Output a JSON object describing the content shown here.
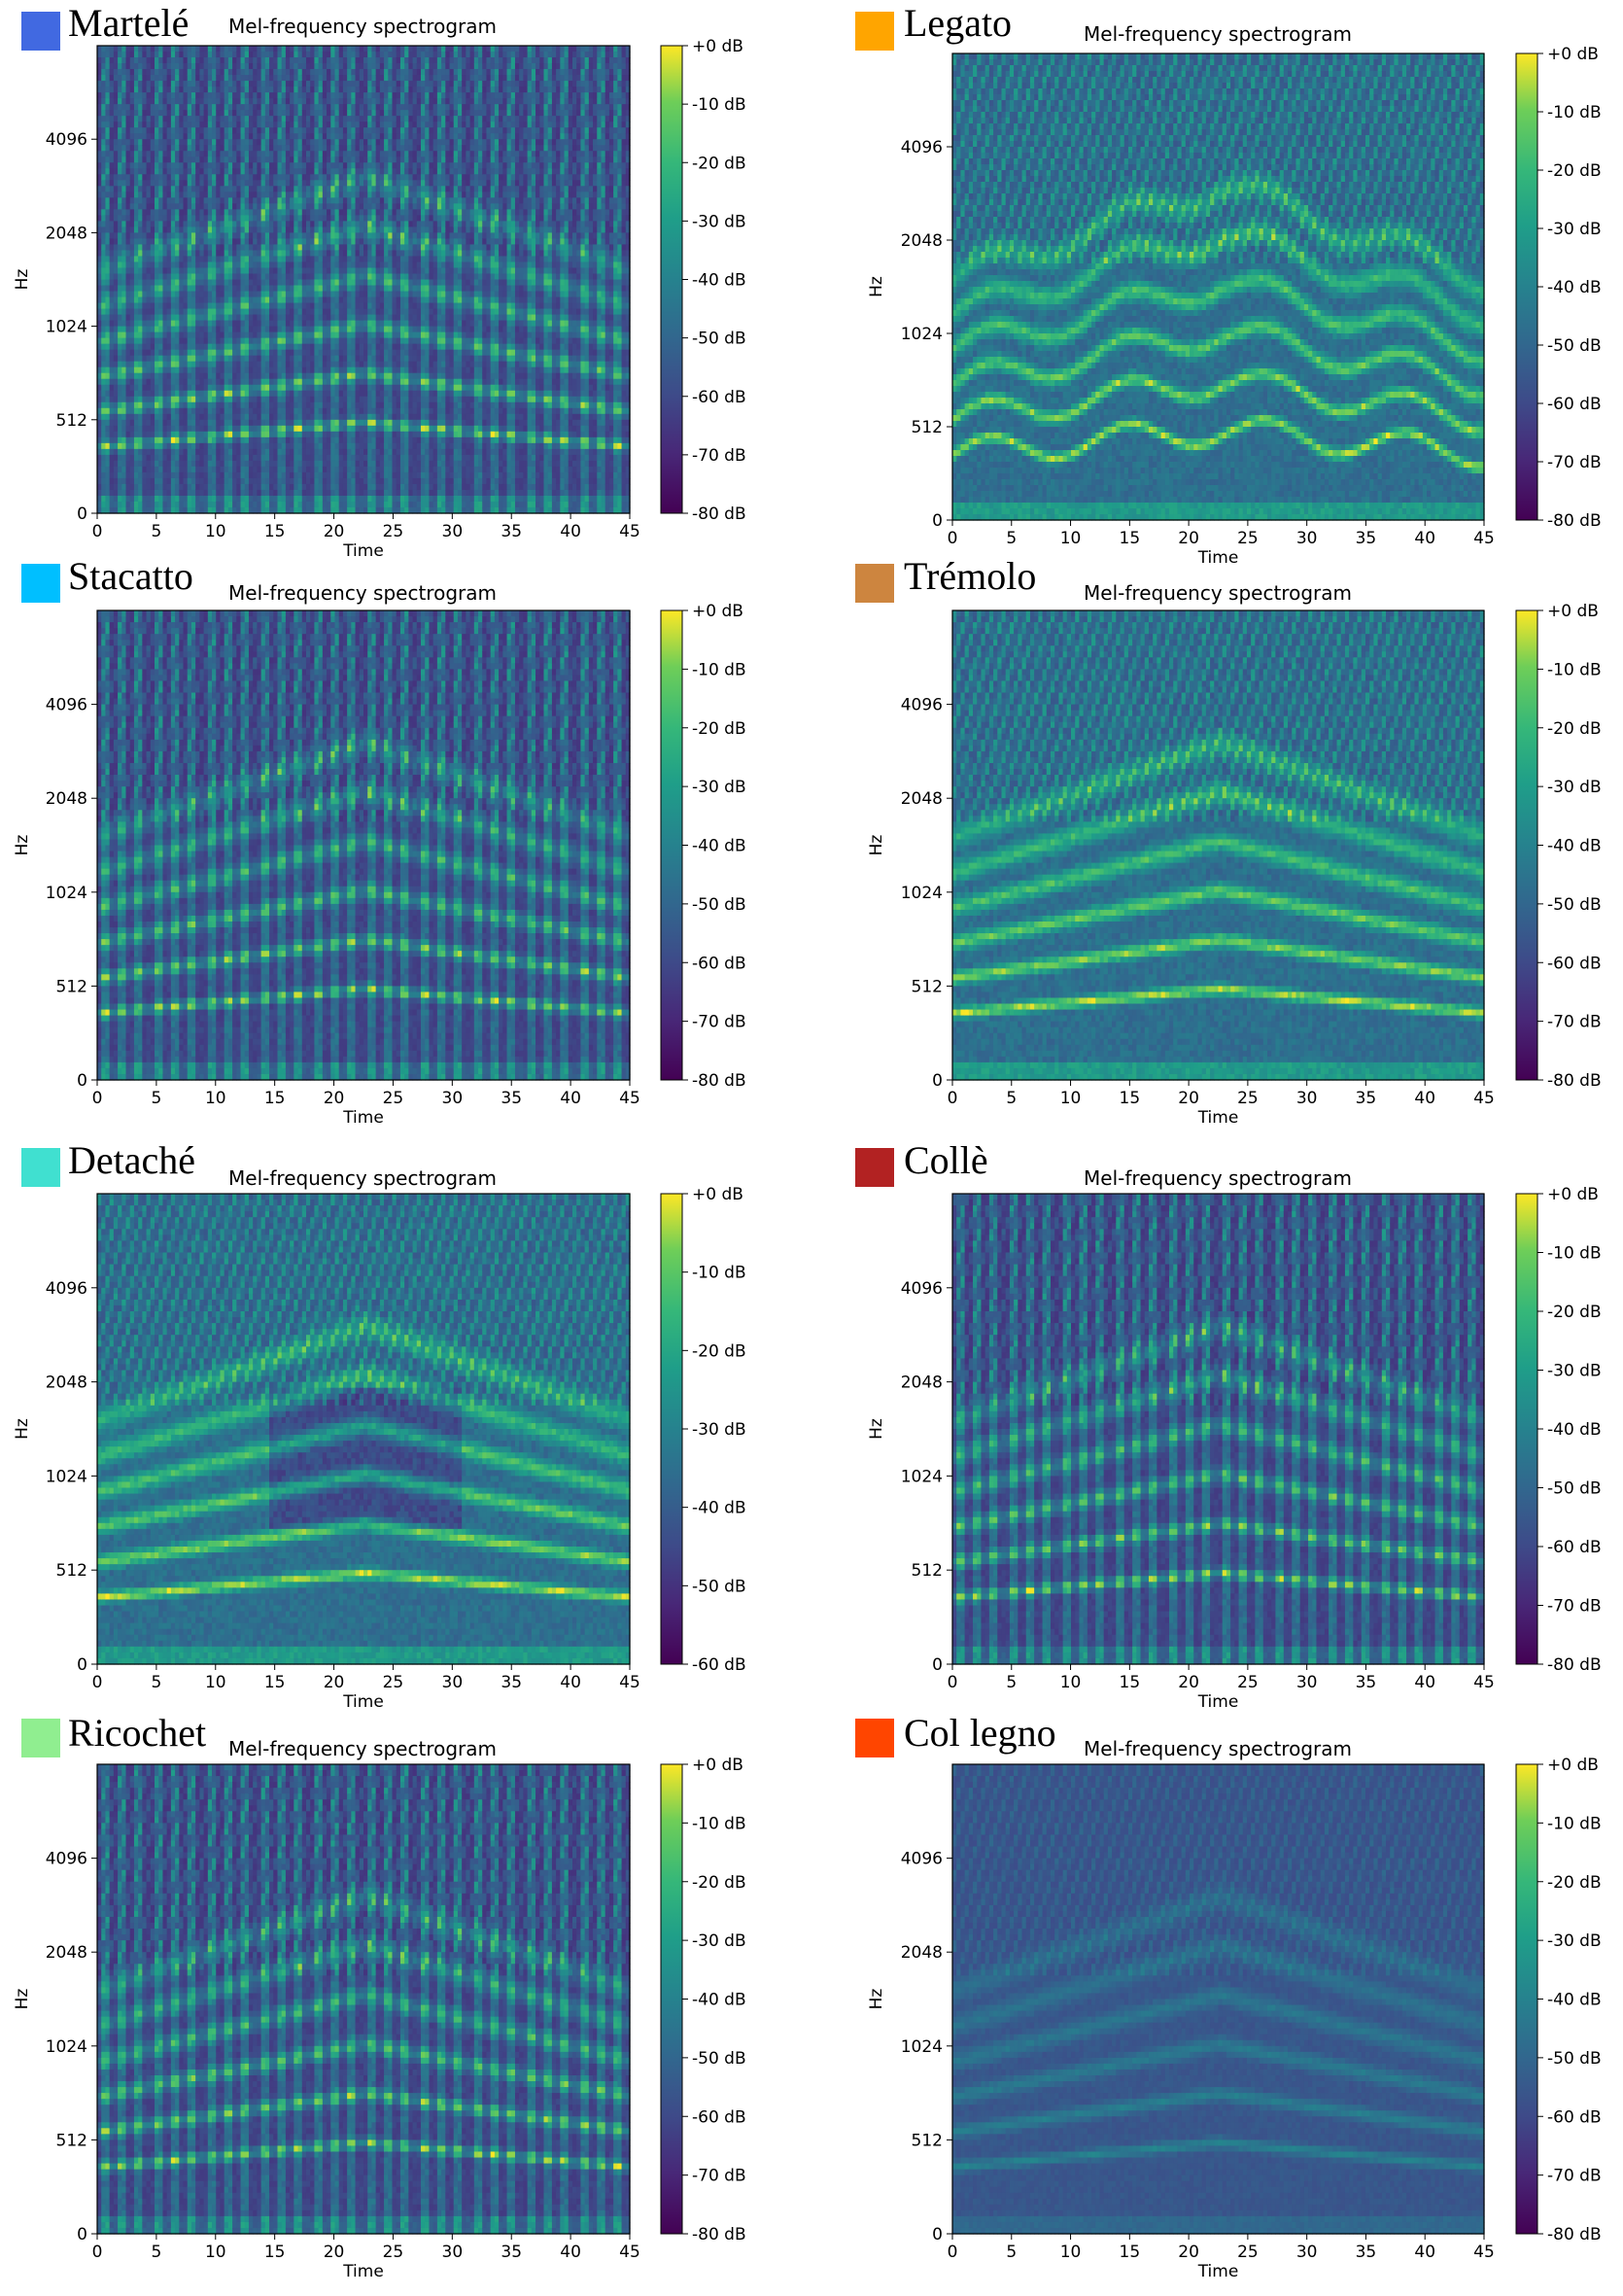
{
  "chart_data": [
    {
      "type": "heatmap",
      "technique": "Martelé",
      "swatch_color": "#4169E1",
      "title": "Mel-frequency spectrogram",
      "xlabel": "Time",
      "ylabel": "Hz",
      "x_ticks": [
        "0",
        "5",
        "10",
        "15",
        "20",
        "25",
        "30",
        "35",
        "40",
        "45"
      ],
      "x_range": [
        0,
        45
      ],
      "y_ticks": [
        "0",
        "512",
        "1024",
        "2048",
        "4096"
      ],
      "colorbar_ticks": [
        "+0 dB",
        "-10 dB",
        "-20 dB",
        "-30 dB",
        "-40 dB",
        "-50 dB",
        "-60 dB",
        "-70 dB",
        "-80 dB"
      ],
      "colorbar_range": [
        -80,
        0
      ],
      "colormap": "viridis"
    },
    {
      "type": "heatmap",
      "technique": "Legato",
      "swatch_color": "#FFA500",
      "title": "Mel-frequency spectrogram",
      "xlabel": "Time",
      "ylabel": "Hz",
      "x_ticks": [
        "0",
        "5",
        "10",
        "15",
        "20",
        "25",
        "30",
        "35",
        "40",
        "45"
      ],
      "x_range": [
        0,
        45
      ],
      "y_ticks": [
        "0",
        "512",
        "1024",
        "2048",
        "4096"
      ],
      "colorbar_ticks": [
        "+0 dB",
        "-10 dB",
        "-20 dB",
        "-30 dB",
        "-40 dB",
        "-50 dB",
        "-60 dB",
        "-70 dB",
        "-80 dB"
      ],
      "colorbar_range": [
        -80,
        0
      ],
      "colormap": "viridis"
    },
    {
      "type": "heatmap",
      "technique": "Stacatto",
      "swatch_color": "#00BFFF",
      "title": "Mel-frequency spectrogram",
      "xlabel": "Time",
      "ylabel": "Hz",
      "x_ticks": [
        "0",
        "5",
        "10",
        "15",
        "20",
        "25",
        "30",
        "35",
        "40",
        "45"
      ],
      "x_range": [
        0,
        45
      ],
      "y_ticks": [
        "0",
        "512",
        "1024",
        "2048",
        "4096"
      ],
      "colorbar_ticks": [
        "+0 dB",
        "-10 dB",
        "-20 dB",
        "-30 dB",
        "-40 dB",
        "-50 dB",
        "-60 dB",
        "-70 dB",
        "-80 dB"
      ],
      "colorbar_range": [
        -80,
        0
      ],
      "colormap": "viridis"
    },
    {
      "type": "heatmap",
      "technique": "Trémolo",
      "swatch_color": "#CD853F",
      "title": "Mel-frequency spectrogram",
      "xlabel": "Time",
      "ylabel": "Hz",
      "x_ticks": [
        "0",
        "5",
        "10",
        "15",
        "20",
        "25",
        "30",
        "35",
        "40",
        "45"
      ],
      "x_range": [
        0,
        45
      ],
      "y_ticks": [
        "0",
        "512",
        "1024",
        "2048",
        "4096"
      ],
      "colorbar_ticks": [
        "+0 dB",
        "-10 dB",
        "-20 dB",
        "-30 dB",
        "-40 dB",
        "-50 dB",
        "-60 dB",
        "-70 dB",
        "-80 dB"
      ],
      "colorbar_range": [
        -80,
        0
      ],
      "colormap": "viridis"
    },
    {
      "type": "heatmap",
      "technique": "Detaché",
      "swatch_color": "#40E0D0",
      "title": "Mel-frequency spectrogram",
      "xlabel": "Time",
      "ylabel": "Hz",
      "x_ticks": [
        "0",
        "5",
        "10",
        "15",
        "20",
        "25",
        "30",
        "35",
        "40",
        "45"
      ],
      "x_range": [
        0,
        45
      ],
      "y_ticks": [
        "0",
        "512",
        "1024",
        "2048",
        "4096"
      ],
      "colorbar_ticks": [
        "+0 dB",
        "-10 dB",
        "-20 dB",
        "-30 dB",
        "-40 dB",
        "-50 dB",
        "-60 dB"
      ],
      "colorbar_range": [
        -70,
        0
      ],
      "colormap": "viridis"
    },
    {
      "type": "heatmap",
      "technique": "Collè",
      "swatch_color": "#B22222",
      "title": "Mel-frequency spectrogram",
      "xlabel": "Time",
      "ylabel": "Hz",
      "x_ticks": [
        "0",
        "5",
        "10",
        "15",
        "20",
        "25",
        "30",
        "35",
        "40",
        "45"
      ],
      "x_range": [
        0,
        45
      ],
      "y_ticks": [
        "0",
        "512",
        "1024",
        "2048",
        "4096"
      ],
      "colorbar_ticks": [
        "+0 dB",
        "-10 dB",
        "-20 dB",
        "-30 dB",
        "-40 dB",
        "-50 dB",
        "-60 dB",
        "-70 dB",
        "-80 dB"
      ],
      "colorbar_range": [
        -80,
        0
      ],
      "colormap": "viridis"
    },
    {
      "type": "heatmap",
      "technique": "Ricochet",
      "swatch_color": "#90EE90",
      "title": "Mel-frequency spectrogram",
      "xlabel": "Time",
      "ylabel": "Hz",
      "x_ticks": [
        "0",
        "5",
        "10",
        "15",
        "20",
        "25",
        "30",
        "35",
        "40",
        "45"
      ],
      "x_range": [
        0,
        45
      ],
      "y_ticks": [
        "0",
        "512",
        "1024",
        "2048",
        "4096"
      ],
      "colorbar_ticks": [
        "+0 dB",
        "-10 dB",
        "-20 dB",
        "-30 dB",
        "-40 dB",
        "-50 dB",
        "-60 dB",
        "-70 dB",
        "-80 dB"
      ],
      "colorbar_range": [
        -80,
        0
      ],
      "colormap": "viridis"
    },
    {
      "type": "heatmap",
      "technique": "Col legno",
      "swatch_color": "#FF4500",
      "title": "Mel-frequency spectrogram",
      "xlabel": "Time",
      "ylabel": "Hz",
      "x_ticks": [
        "0",
        "5",
        "10",
        "15",
        "20",
        "25",
        "30",
        "35",
        "40",
        "45"
      ],
      "x_range": [
        0,
        45
      ],
      "y_ticks": [
        "0",
        "512",
        "1024",
        "2048",
        "4096"
      ],
      "colorbar_ticks": [
        "+0 dB",
        "-10 dB",
        "-20 dB",
        "-30 dB",
        "-40 dB",
        "-50 dB",
        "-60 dB",
        "-70 dB",
        "-80 dB"
      ],
      "colorbar_range": [
        -80,
        0
      ],
      "colormap": "viridis"
    }
  ]
}
